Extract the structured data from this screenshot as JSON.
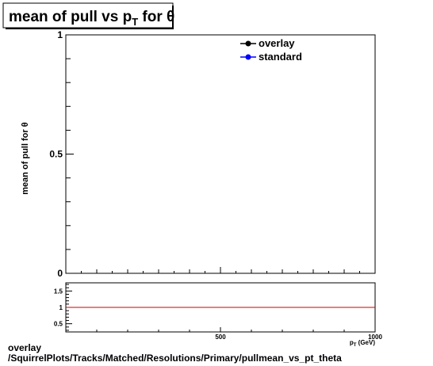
{
  "chart_data": [
    {
      "type": "line",
      "title_main": "mean of pull vs p",
      "title_sub": "T",
      "title_tail": " for  θ",
      "ylabel": "mean of pull for  θ",
      "xlabel": "p_{T} (GeV)",
      "xlim": [
        0,
        1000
      ],
      "ylim": [
        0,
        1
      ],
      "y_ticks": [
        {
          "value": 0,
          "label": "0"
        },
        {
          "value": 0.5,
          "label": "0.5"
        },
        {
          "value": 1,
          "label": "1"
        }
      ],
      "legend": {
        "position": "top-right",
        "entries": [
          {
            "label": "overlay",
            "color": "#000000"
          },
          {
            "label": "standard",
            "color": "#0000ff"
          }
        ]
      },
      "series": [
        {
          "name": "overlay",
          "color": "#000000",
          "x": [],
          "y": []
        },
        {
          "name": "standard",
          "color": "#0000ff",
          "x": [],
          "y": []
        }
      ]
    },
    {
      "type": "line",
      "xlim": [
        0,
        1000
      ],
      "ylim": [
        0.25,
        1.75
      ],
      "x_ticks": [
        {
          "value": 500,
          "label": "500"
        },
        {
          "value": 1000,
          "label": "1000"
        }
      ],
      "y_ticks": [
        {
          "value": 0.5,
          "label": "0.5"
        },
        {
          "value": 1,
          "label": "1"
        },
        {
          "value": 1.5,
          "label": "1.5"
        }
      ],
      "reference_line": {
        "value": 1,
        "color": "#cc0000"
      }
    }
  ],
  "footer": {
    "line1": "overlay",
    "line2": "/SquirrelPlots/Tracks/Matched/Resolutions/Primary/pullmean_vs_pt_theta"
  }
}
